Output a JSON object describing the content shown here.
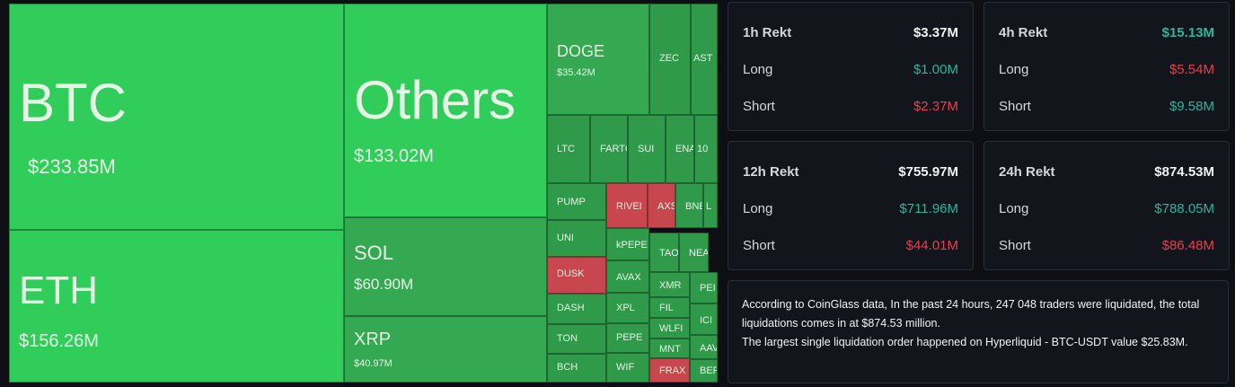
{
  "treemap": {
    "tiles": [
      {
        "label": "BTC",
        "value": "$233.85M"
      },
      {
        "label": "ETH",
        "value": "$156.26M"
      },
      {
        "label": "Others",
        "value": "$133.02M"
      },
      {
        "label": "SOL",
        "value": "$60.90M"
      },
      {
        "label": "XRP",
        "value": "$40.97M"
      },
      {
        "label": "DOGE",
        "value": "$35.42M"
      },
      {
        "label": "ZEC"
      },
      {
        "label": "AST"
      },
      {
        "label": "LTC"
      },
      {
        "label": "FARTC"
      },
      {
        "label": "SUI"
      },
      {
        "label": "ENA"
      },
      {
        "label": "10"
      },
      {
        "label": "PUMP"
      },
      {
        "label": "RIVEI"
      },
      {
        "label": "AXS"
      },
      {
        "label": "BNE"
      },
      {
        "label": "L"
      },
      {
        "label": "UNI"
      },
      {
        "label": "kPEPE"
      },
      {
        "label": "TAO"
      },
      {
        "label": "NEA"
      },
      {
        "label": "DUSK"
      },
      {
        "label": "AVAX"
      },
      {
        "label": "XMR"
      },
      {
        "label": "PEI"
      },
      {
        "label": "DASH"
      },
      {
        "label": "XPL"
      },
      {
        "label": "FIL"
      },
      {
        "label": "ICI"
      },
      {
        "label": "TON"
      },
      {
        "label": "PEPE"
      },
      {
        "label": "WLFI"
      },
      {
        "label": "MNT"
      },
      {
        "label": "AAV"
      },
      {
        "label": "BCH"
      },
      {
        "label": "WIF"
      },
      {
        "label": "FRAX"
      },
      {
        "label": "BER"
      }
    ]
  },
  "cards": [
    {
      "title": "1h Rekt",
      "total": "$3.37M",
      "long_label": "Long",
      "long": "$1.00M",
      "short_label": "Short",
      "short": "$2.37M"
    },
    {
      "title": "4h Rekt",
      "total": "$15.13M",
      "long_label": "Long",
      "long": "$5.54M",
      "short_label": "Short",
      "short": "$9.58M"
    },
    {
      "title": "12h Rekt",
      "total": "$755.97M",
      "long_label": "Long",
      "long": "$711.96M",
      "short_label": "Short",
      "short": "$44.01M"
    },
    {
      "title": "24h Rekt",
      "total": "$874.53M",
      "long_label": "Long",
      "long": "$788.05M",
      "short_label": "Short",
      "short": "$86.48M"
    }
  ],
  "summary": {
    "lines": [
      "According to CoinGlass data, In the past 24 hours, 247 048 traders were liquidated, the total liquidations comes in at $874.53 million.",
      "The largest single liquidation order happened on Hyperliquid - BTC-USDT value $25.83M."
    ]
  }
}
